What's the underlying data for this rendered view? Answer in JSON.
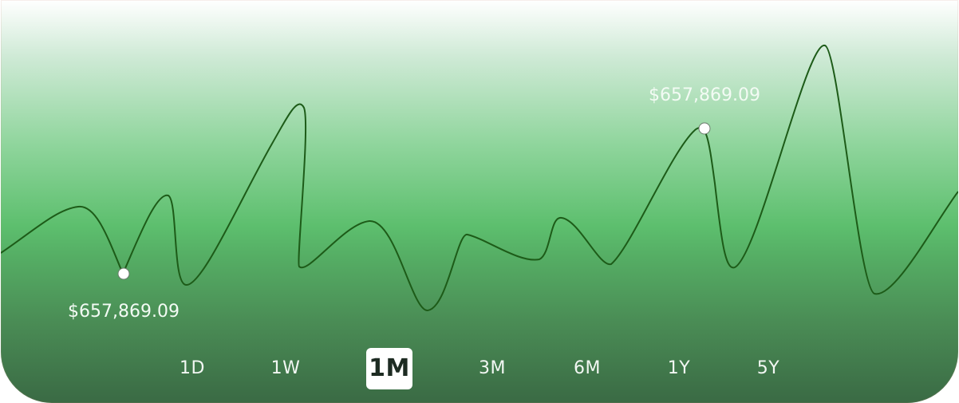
{
  "chart_data": {
    "type": "line",
    "title": "",
    "xlabel": "",
    "ylabel": "",
    "x_index": [
      0,
      1,
      2,
      3,
      4,
      5,
      6,
      7,
      8,
      9,
      10,
      11,
      12,
      13,
      14,
      15,
      16,
      17,
      18,
      19,
      20,
      21
    ],
    "ylim": [
      0,
      100
    ],
    "grid": false,
    "legend": "none",
    "line_color": "#1d5b18",
    "series": [
      {
        "values": [
          41,
          56,
          37,
          61,
          34,
          87,
          39,
          52,
          26,
          47,
          43,
          51,
          38,
          94,
          39,
          105,
          39,
          44,
          57,
          48,
          74,
          62
        ]
      }
    ],
    "markers": [
      {
        "index": 2,
        "label": "$657,869.09",
        "label_position": "below"
      },
      {
        "index": 13,
        "label": "$657,869.09",
        "label_position": "above"
      }
    ]
  },
  "range_selector": {
    "options": [
      "1D",
      "1W",
      "1M",
      "3M",
      "6M",
      "1Y",
      "5Y"
    ],
    "active": "1M"
  },
  "colors": {
    "line": "#1d5b18",
    "marker_fill": "#ffffff",
    "label_text": "#f3fbf4",
    "active_tab_bg": "#ffffff",
    "active_tab_text": "#1d2b22"
  }
}
